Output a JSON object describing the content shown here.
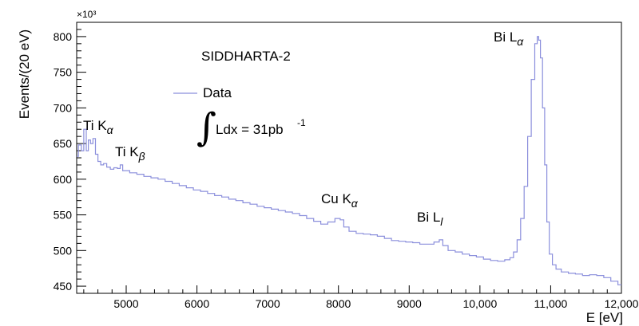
{
  "chart_data": {
    "type": "line",
    "xlabel": "E [eV]",
    "ylabel": "Events/(20 eV)",
    "y_multiplier": "×10³",
    "xlim": [
      4300,
      12000
    ],
    "ylim": [
      440,
      820
    ],
    "x_ticks": [
      5000,
      6000,
      7000,
      8000,
      9000,
      10000,
      11000,
      12000
    ],
    "x_tick_labels": [
      "5000",
      "6000",
      "7000",
      "8000",
      "9000",
      "10,000",
      "11,000",
      "12,000"
    ],
    "y_ticks": [
      450,
      500,
      550,
      600,
      650,
      700,
      750,
      800
    ],
    "y_tick_labels": [
      "450",
      "500",
      "550",
      "600",
      "650",
      "700",
      "750",
      "800"
    ],
    "grid": false,
    "experiment_label": "SIDDHARTA-2",
    "legend": {
      "placement": "top-left",
      "entry": "Data",
      "luminosity": "Ldx = 31pb",
      "luminosity_exp": "-1"
    },
    "series_color": "#8b8fdc",
    "annotations": [
      {
        "base": "Ti K",
        "sub": "α",
        "x": 4510,
        "y": 658
      },
      {
        "base": "Ti K",
        "sub": "β",
        "x": 4930,
        "y": 624
      },
      {
        "base": "Cu K",
        "sub": "α",
        "x": 8050,
        "y": 555
      },
      {
        "base": "Bi L",
        "sub": "l",
        "x": 9450,
        "y": 530
      },
      {
        "base": "Bi L",
        "sub": "α",
        "x": 10820,
        "y": 808
      }
    ],
    "series": [
      {
        "points": [
          [
            4300,
            632
          ],
          [
            4350,
            648
          ],
          [
            4380,
            640
          ],
          [
            4420,
            670
          ],
          [
            4450,
            640
          ],
          [
            4480,
            655
          ],
          [
            4510,
            650
          ],
          [
            4550,
            657
          ],
          [
            4580,
            635
          ],
          [
            4620,
            625
          ],
          [
            4660,
            620
          ],
          [
            4700,
            622
          ],
          [
            4750,
            617
          ],
          [
            4800,
            614
          ],
          [
            4850,
            616
          ],
          [
            4900,
            615
          ],
          [
            4930,
            620
          ],
          [
            4970,
            612
          ],
          [
            5000,
            612
          ],
          [
            5100,
            609
          ],
          [
            5200,
            607
          ],
          [
            5300,
            604
          ],
          [
            5400,
            602
          ],
          [
            5500,
            600
          ],
          [
            5600,
            597
          ],
          [
            5700,
            594
          ],
          [
            5800,
            591
          ],
          [
            5900,
            588
          ],
          [
            6000,
            585
          ],
          [
            6100,
            583
          ],
          [
            6200,
            580
          ],
          [
            6300,
            577
          ],
          [
            6400,
            575
          ],
          [
            6500,
            572
          ],
          [
            6600,
            570
          ],
          [
            6700,
            567
          ],
          [
            6800,
            565
          ],
          [
            6900,
            562
          ],
          [
            7000,
            560
          ],
          [
            7100,
            558
          ],
          [
            7200,
            556
          ],
          [
            7300,
            554
          ],
          [
            7400,
            552
          ],
          [
            7500,
            549
          ],
          [
            7600,
            545
          ],
          [
            7700,
            541
          ],
          [
            7800,
            537
          ],
          [
            7900,
            540
          ],
          [
            8000,
            545
          ],
          [
            8050,
            543
          ],
          [
            8100,
            533
          ],
          [
            8200,
            527
          ],
          [
            8300,
            524
          ],
          [
            8400,
            523
          ],
          [
            8500,
            522
          ],
          [
            8600,
            520
          ],
          [
            8700,
            517
          ],
          [
            8800,
            514
          ],
          [
            8900,
            513
          ],
          [
            9000,
            512
          ],
          [
            9100,
            511
          ],
          [
            9200,
            509
          ],
          [
            9300,
            509
          ],
          [
            9400,
            512
          ],
          [
            9450,
            515
          ],
          [
            9500,
            507
          ],
          [
            9600,
            500
          ],
          [
            9700,
            498
          ],
          [
            9800,
            495
          ],
          [
            9900,
            493
          ],
          [
            10000,
            491
          ],
          [
            10100,
            488
          ],
          [
            10200,
            486
          ],
          [
            10300,
            485
          ],
          [
            10400,
            487
          ],
          [
            10450,
            490
          ],
          [
            10500,
            498
          ],
          [
            10550,
            515
          ],
          [
            10600,
            545
          ],
          [
            10650,
            590
          ],
          [
            10700,
            660
          ],
          [
            10750,
            740
          ],
          [
            10800,
            790
          ],
          [
            10820,
            800
          ],
          [
            10840,
            795
          ],
          [
            10870,
            770
          ],
          [
            10900,
            700
          ],
          [
            10930,
            620
          ],
          [
            10960,
            540
          ],
          [
            11000,
            495
          ],
          [
            11050,
            480
          ],
          [
            11100,
            474
          ],
          [
            11200,
            470
          ],
          [
            11300,
            468
          ],
          [
            11400,
            467
          ],
          [
            11500,
            465
          ],
          [
            11600,
            466
          ],
          [
            11700,
            465
          ],
          [
            11800,
            462
          ],
          [
            11900,
            457
          ],
          [
            12000,
            452
          ]
        ]
      }
    ]
  }
}
